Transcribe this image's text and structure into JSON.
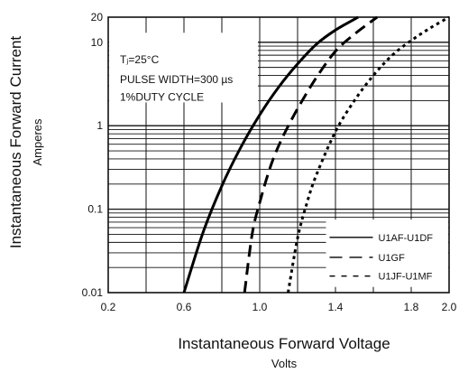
{
  "chart_data": {
    "type": "line",
    "title": "",
    "xlabel": "Instantaneous Forward Voltage",
    "xlabel_sub": "Volts",
    "ylabel": "Instantaneous Forward Current",
    "ylabel_sub": "Amperes",
    "xlim": [
      0.2,
      2.0
    ],
    "ylim": [
      0.01,
      20
    ],
    "yscale": "log",
    "grid": true,
    "x_ticks": [
      0.2,
      0.6,
      1.0,
      1.4,
      1.8,
      2.0
    ],
    "x_tick_labels": [
      "0.2",
      "0.6",
      "1.0",
      "1.4",
      "1.8",
      "2.0"
    ],
    "y_ticks": [
      0.01,
      0.1,
      1,
      10,
      20
    ],
    "y_tick_labels": [
      "0.01",
      "0.1",
      "1",
      "10",
      "20"
    ],
    "annotation_lines": [
      "Tⱼ=25°C",
      "PULSE WIDTH=300 µs",
      "1%DUTY CYCLE"
    ],
    "legend_position": "lower-right",
    "series": [
      {
        "name": "U1AF-U1DF",
        "style": "solid",
        "x": [
          0.6,
          0.7,
          0.8,
          0.9,
          1.0,
          1.1,
          1.2,
          1.3,
          1.4,
          1.52
        ],
        "y": [
          0.01,
          0.052,
          0.19,
          0.55,
          1.35,
          2.9,
          5.5,
          9.5,
          14.0,
          20.0
        ]
      },
      {
        "name": "U1GF",
        "style": "dashed",
        "x": [
          0.92,
          0.96,
          1.0,
          1.06,
          1.12,
          1.2,
          1.3,
          1.4,
          1.5,
          1.62
        ],
        "y": [
          0.01,
          0.05,
          0.12,
          0.34,
          0.72,
          1.6,
          3.8,
          7.8,
          12.5,
          20.0
        ]
      },
      {
        "name": "U1JF-U1MF",
        "style": "dotted",
        "x": [
          1.15,
          1.2,
          1.25,
          1.3,
          1.4,
          1.5,
          1.6,
          1.7,
          1.8,
          1.9,
          2.0
        ],
        "y": [
          0.01,
          0.045,
          0.12,
          0.26,
          0.85,
          2.0,
          4.0,
          7.0,
          10.5,
          14.8,
          20.0
        ]
      }
    ]
  }
}
